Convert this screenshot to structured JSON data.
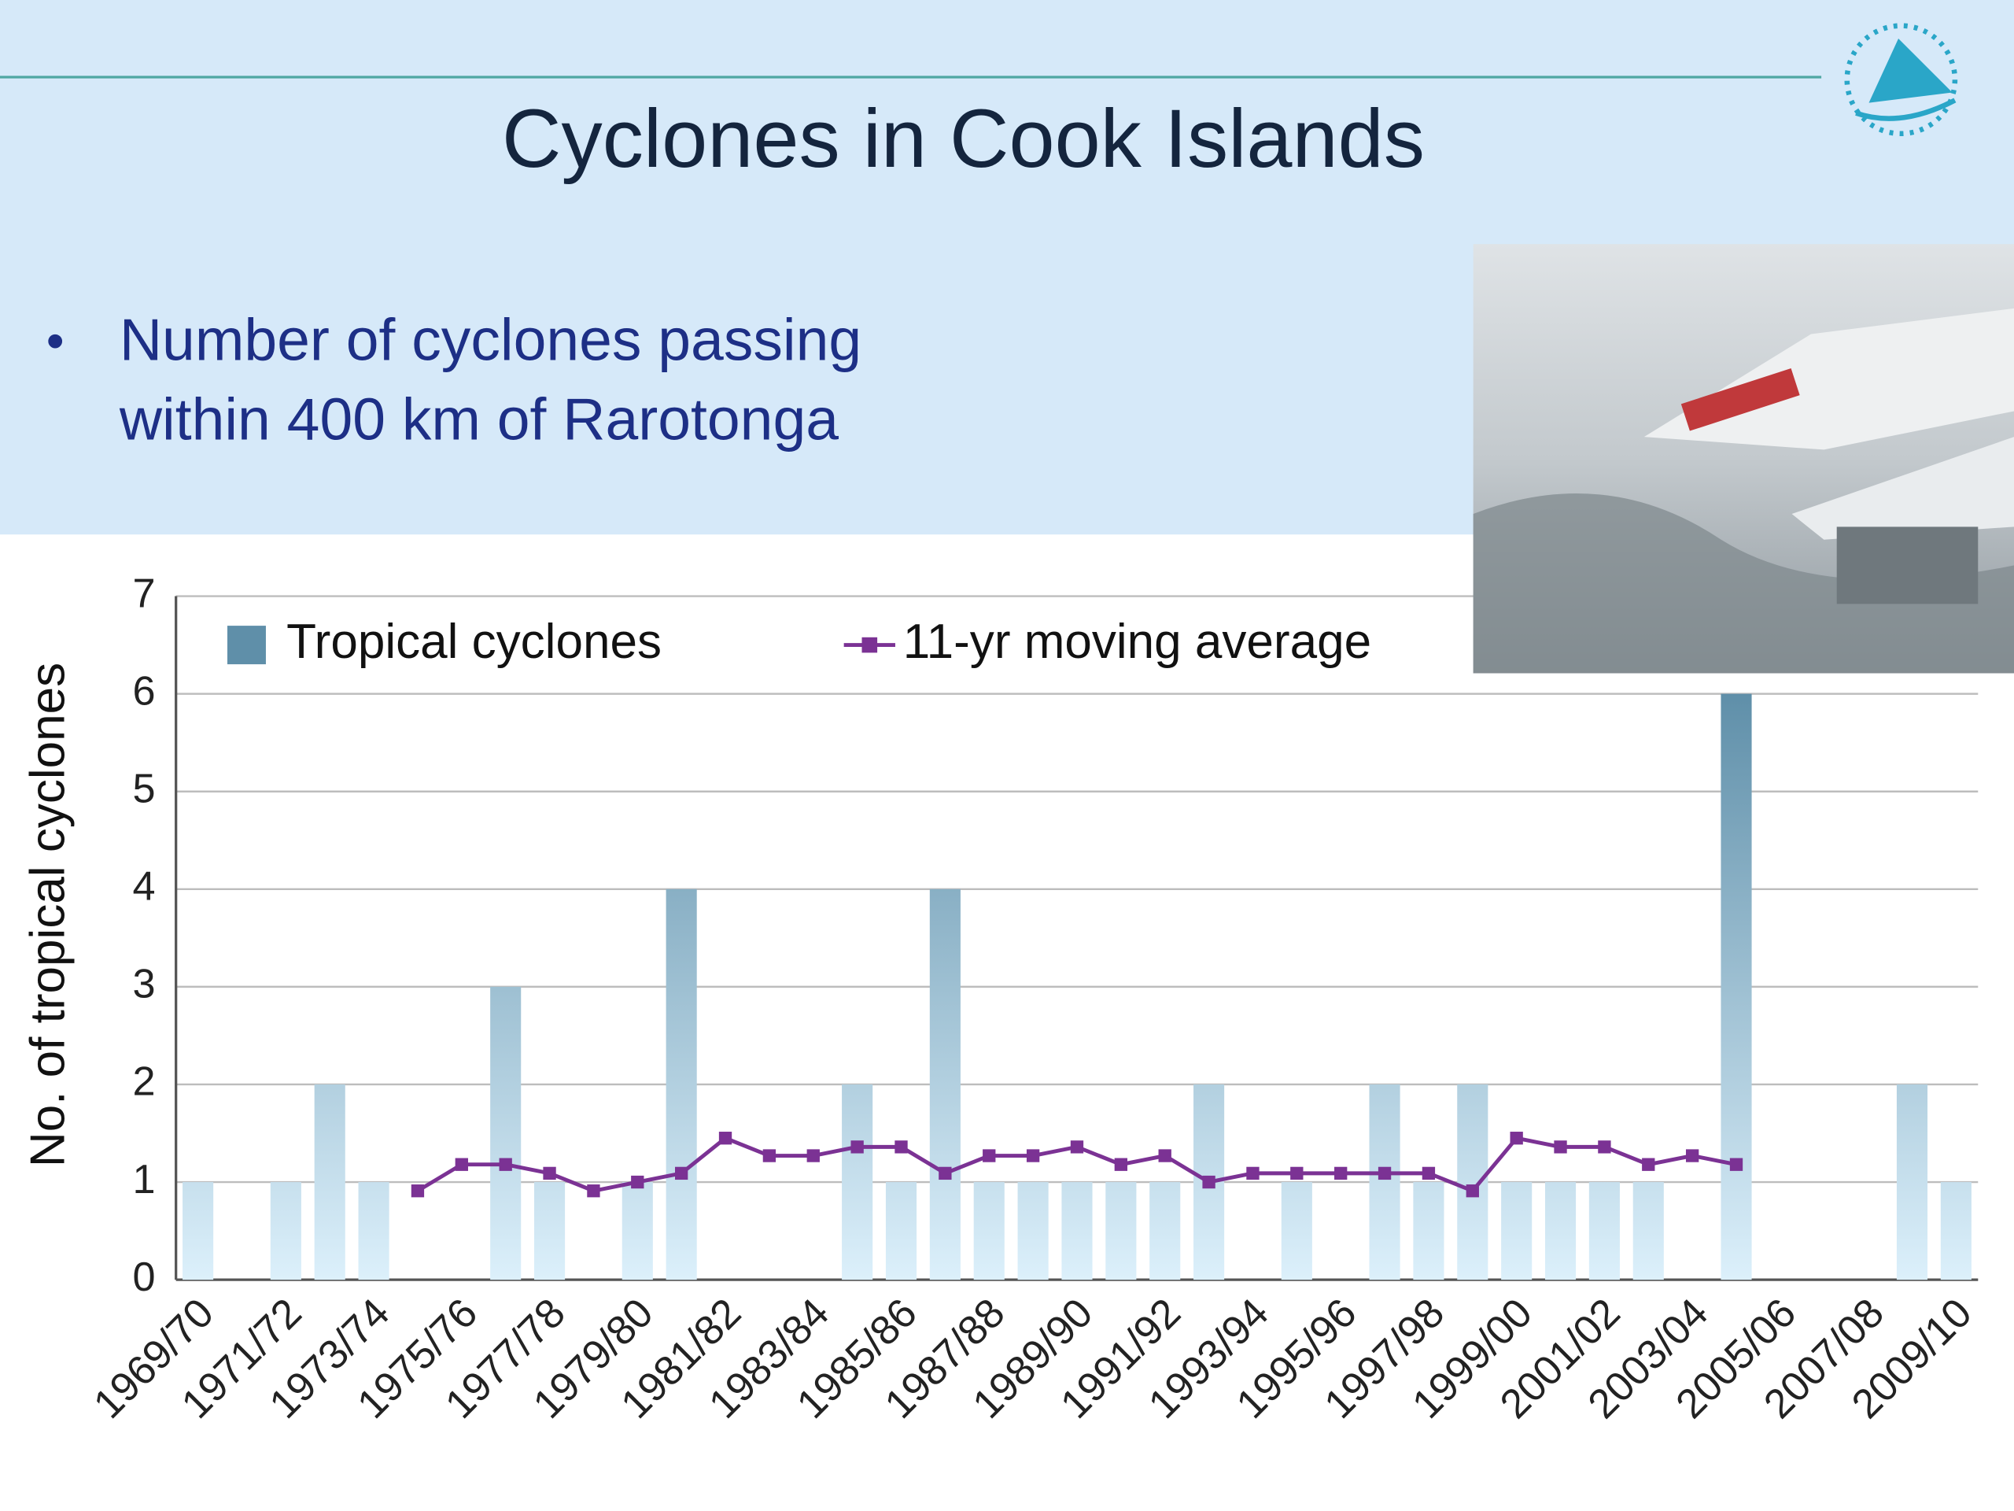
{
  "slide": {
    "title": "Cyclones in Cook Islands",
    "bullet_lines": [
      "Number of cyclones passing",
      "within 400 km of Rarotonga"
    ]
  },
  "chart_data": {
    "type": "bar_line",
    "y_label": "No. of tropical cyclones",
    "categories": [
      "1969/70",
      null,
      "1971/72",
      null,
      "1973/74",
      null,
      "1975/76",
      null,
      "1977/78",
      null,
      "1979/80",
      null,
      "1981/82",
      null,
      "1983/84",
      null,
      "1985/86",
      null,
      "1987/88",
      null,
      "1989/90",
      null,
      "1991/92",
      null,
      "1993/94",
      null,
      "1995/96",
      null,
      "1997/98",
      null,
      "1999/00",
      null,
      "2001/02",
      null,
      "2003/04",
      null,
      "2005/06",
      null,
      "2007/08",
      null,
      "2009/10"
    ],
    "series": [
      {
        "name": "Tropical cyclones",
        "kind": "bar",
        "color": "#6f9fba",
        "values": [
          1,
          0,
          1,
          2,
          1,
          0,
          0,
          3,
          1,
          0,
          1,
          4,
          0,
          0,
          0,
          2,
          1,
          4,
          1,
          1,
          1,
          1,
          1,
          2,
          0,
          1,
          0,
          2,
          1,
          2,
          1,
          1,
          1,
          1,
          0,
          6,
          0,
          0,
          0,
          2,
          1
        ]
      },
      {
        "name": "11-yr moving average",
        "kind": "line",
        "color": "#7b3294",
        "values": [
          null,
          null,
          null,
          null,
          null,
          0.91,
          1.18,
          1.18,
          1.09,
          0.91,
          1.0,
          1.09,
          1.45,
          1.27,
          1.27,
          1.36,
          1.36,
          1.09,
          1.27,
          1.27,
          1.36,
          1.18,
          1.27,
          1.0,
          1.09,
          1.09,
          1.09,
          1.09,
          1.09,
          0.91,
          1.45,
          1.36,
          1.36,
          1.18,
          1.27,
          1.18,
          null,
          null,
          null,
          null,
          null
        ]
      }
    ],
    "ylim": [
      0,
      7
    ],
    "yticks": [
      0,
      1,
      2,
      3,
      4,
      5,
      6,
      7
    ],
    "grid": true,
    "legend": "upper left"
  }
}
